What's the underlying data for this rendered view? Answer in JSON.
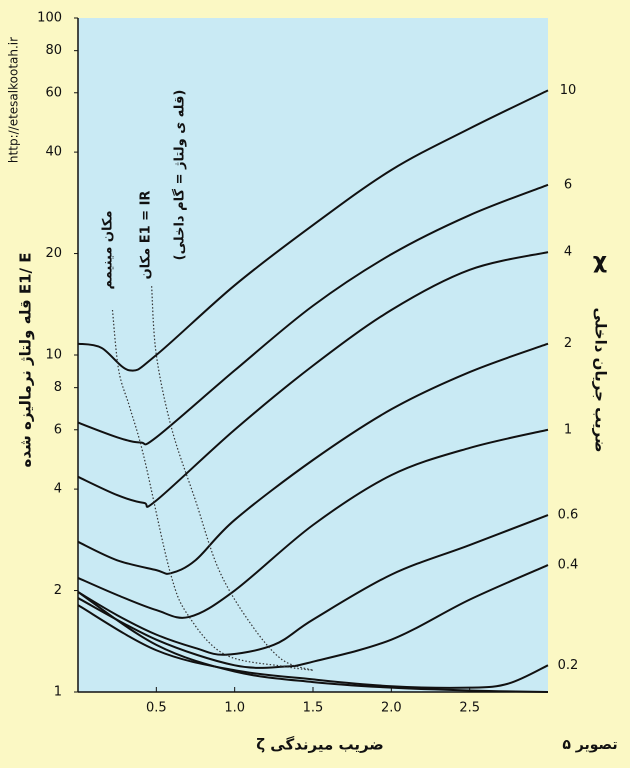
{
  "chart_data": {
    "type": "line",
    "ylabel": "قله ولتاژ نرماليزه شده  E1/ E",
    "xlabel": "ζ  ضريب ميرندگی",
    "y2symbol": "χ",
    "y2label": "ضريب جريان داخلی",
    "figure_label": "تصوير ۵",
    "source": "http://etesalkootah.ir",
    "annotations": [
      "مكان مينيمم",
      "مكان E1 = IR",
      "(قله ی ولتاژ = گام داخلی)"
    ],
    "log_y": true,
    "xlim": [
      0,
      3
    ],
    "ylim": [
      1,
      100
    ],
    "xticks": [
      0.5,
      {
        "value": 1,
        "label": "1.0"
      },
      1.5,
      {
        "value": 2,
        "label": "2.0"
      },
      2.5
    ],
    "yticks": [
      1,
      2,
      4,
      6,
      8,
      10,
      20,
      40,
      60,
      80,
      100
    ],
    "plot_color": "#c9eaf4",
    "series": [
      {
        "name": "10",
        "color": "#111111",
        "x": [
          0,
          0.15,
          0.33,
          0.5,
          1,
          1.5,
          2,
          2.5,
          3
        ],
        "values": [
          10.8,
          10.5,
          9.0,
          10,
          16.1,
          24.3,
          35.4,
          47,
          61
        ]
      },
      {
        "name": "6",
        "color": "#111111",
        "x": [
          0,
          0.25,
          0.4,
          0.5,
          1,
          1.5,
          2,
          2.5,
          3
        ],
        "values": [
          6.3,
          5.7,
          5.5,
          5.7,
          9,
          14,
          19.9,
          26,
          32
        ]
      },
      {
        "name": "4",
        "color": "#111111",
        "x": [
          0,
          0.25,
          0.42,
          0.5,
          1,
          1.5,
          2,
          2.5,
          3
        ],
        "values": [
          4.35,
          3.84,
          3.64,
          3.7,
          6.0,
          9.3,
          13.6,
          17.9,
          20.2
        ]
      },
      {
        "name": "2",
        "color": "#111111",
        "x": [
          0,
          0.25,
          0.5,
          0.59,
          0.75,
          1,
          1.5,
          2,
          2.5,
          3
        ],
        "values": [
          2.79,
          2.46,
          2.3,
          2.25,
          2.46,
          3.24,
          4.88,
          6.9,
          8.9,
          10.8
        ]
      },
      {
        "name": "1",
        "color": "#111111",
        "x": [
          0,
          0.25,
          0.5,
          0.71,
          1,
          1.5,
          2,
          2.5,
          3
        ],
        "values": [
          2.18,
          1.94,
          1.75,
          1.67,
          2.0,
          3.13,
          4.4,
          5.3,
          6.0
        ]
      },
      {
        "name": "0.6",
        "color": "#111111",
        "x": [
          0,
          0.25,
          0.5,
          0.75,
          0.94,
          1.25,
          1.5,
          2,
          2.5,
          3
        ],
        "values": [
          1.98,
          1.69,
          1.48,
          1.35,
          1.29,
          1.38,
          1.64,
          2.23,
          2.73,
          3.35
        ]
      },
      {
        "name": "0.4",
        "color": "#111111",
        "x": [
          0,
          0.5,
          1,
          1.32,
          1.5,
          2,
          2.5,
          3
        ],
        "values": [
          1.9,
          1.43,
          1.2,
          1.19,
          1.23,
          1.43,
          1.88,
          2.38
        ]
      },
      {
        "name": "0.2",
        "color": "#111111",
        "x": [
          0,
          0.5,
          1,
          1.5,
          2,
          2.5,
          2.75,
          3
        ],
        "values": [
          1.81,
          1.33,
          1.16,
          1.09,
          1.04,
          1.03,
          1.06,
          1.2
        ]
      },
      {
        "color": "#111111",
        "x": [
          0,
          0.5,
          1,
          1.5,
          2,
          2.5,
          3
        ],
        "values": [
          1.98,
          1.38,
          1.15,
          1.07,
          1.03,
          1.01,
          1.0
        ]
      },
      {
        "color": "#333333",
        "style": "dotted",
        "x": [
          0.22,
          0.26,
          0.33,
          0.42,
          0.59,
          0.71,
          0.94,
          1.32,
          1.5
        ],
        "values": [
          13.6,
          9.0,
          7.0,
          5.0,
          2.25,
          1.67,
          1.29,
          1.19,
          1.16
        ]
      },
      {
        "color": "#333333",
        "style": "dotted",
        "x": [
          0.47,
          0.5,
          0.6,
          0.75,
          0.9,
          1.1,
          1.3,
          1.5
        ],
        "values": [
          16,
          10,
          6,
          3.7,
          2.3,
          1.6,
          1.25,
          1.16
        ]
      }
    ]
  }
}
